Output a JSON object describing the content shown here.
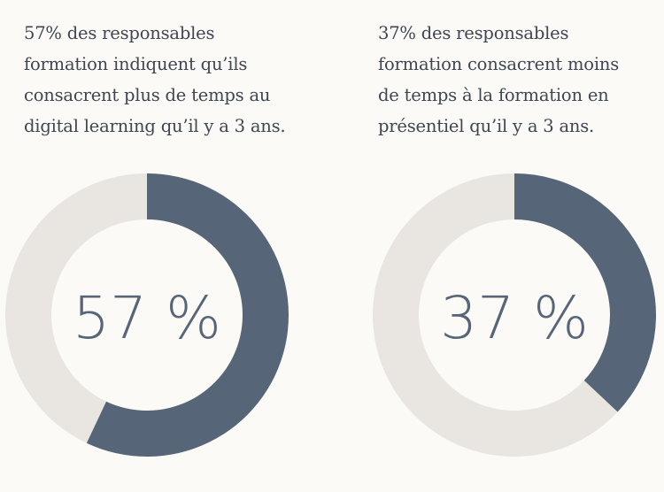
{
  "chart_data": [
    {
      "type": "pie",
      "variant": "donut",
      "title": "57% des responsables formation indiquent qu’ils consacrent plus de temps au digital learning qu’il y a 3 ans.",
      "title_lines": [
        "57% des responsables",
        "formation indiquent qu’ils",
        "consacrent plus de temps au",
        "digital learning qu’il y a 3 ans."
      ],
      "values": [
        57,
        43
      ],
      "center_label": "57 %",
      "colors": {
        "value": "#566577",
        "remainder": "#e9e6e1"
      }
    },
    {
      "type": "pie",
      "variant": "donut",
      "title": "37% des responsables formation consacrent moins de temps à la formation en présentiel qu’il y a 3 ans.",
      "title_lines": [
        "37% des responsables",
        "formation consacrent moins",
        "de temps à la formation en",
        "présentiel qu’il y a 3 ans."
      ],
      "values": [
        37,
        63
      ],
      "center_label": "37 %",
      "colors": {
        "value": "#566577",
        "remainder": "#e9e6e1"
      }
    }
  ]
}
